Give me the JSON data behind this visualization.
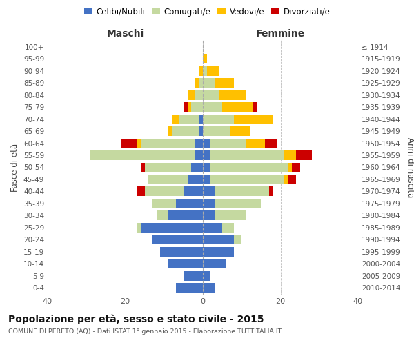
{
  "age_groups": [
    "0-4",
    "5-9",
    "10-14",
    "15-19",
    "20-24",
    "25-29",
    "30-34",
    "35-39",
    "40-44",
    "45-49",
    "50-54",
    "55-59",
    "60-64",
    "65-69",
    "70-74",
    "75-79",
    "80-84",
    "85-89",
    "90-94",
    "95-99",
    "100+"
  ],
  "birth_years": [
    "2010-2014",
    "2005-2009",
    "2000-2004",
    "1995-1999",
    "1990-1994",
    "1985-1989",
    "1980-1984",
    "1975-1979",
    "1970-1974",
    "1965-1969",
    "1960-1964",
    "1955-1959",
    "1950-1954",
    "1945-1949",
    "1940-1944",
    "1935-1939",
    "1930-1934",
    "1925-1929",
    "1920-1924",
    "1915-1919",
    "≤ 1914"
  ],
  "males": {
    "celibi": [
      7,
      5,
      9,
      11,
      13,
      16,
      9,
      7,
      5,
      4,
      3,
      2,
      2,
      1,
      1,
      0,
      0,
      0,
      0,
      0,
      0
    ],
    "coniugati": [
      0,
      0,
      0,
      0,
      0,
      1,
      3,
      6,
      10,
      10,
      12,
      27,
      14,
      7,
      5,
      3,
      2,
      1,
      0,
      0,
      0
    ],
    "vedovi": [
      0,
      0,
      0,
      0,
      0,
      0,
      0,
      0,
      0,
      0,
      0,
      0,
      1,
      1,
      2,
      1,
      2,
      1,
      1,
      0,
      0
    ],
    "divorziati": [
      0,
      0,
      0,
      0,
      0,
      0,
      0,
      0,
      2,
      0,
      1,
      0,
      4,
      0,
      0,
      1,
      0,
      0,
      0,
      0,
      0
    ]
  },
  "females": {
    "nubili": [
      3,
      2,
      6,
      8,
      8,
      5,
      3,
      3,
      3,
      2,
      2,
      2,
      2,
      0,
      0,
      0,
      0,
      0,
      0,
      0,
      0
    ],
    "coniugate": [
      0,
      0,
      0,
      0,
      2,
      3,
      8,
      12,
      14,
      19,
      20,
      19,
      9,
      7,
      8,
      5,
      4,
      3,
      1,
      0,
      0
    ],
    "vedove": [
      0,
      0,
      0,
      0,
      0,
      0,
      0,
      0,
      0,
      1,
      1,
      3,
      5,
      5,
      10,
      8,
      7,
      5,
      3,
      1,
      0
    ],
    "divorziate": [
      0,
      0,
      0,
      0,
      0,
      0,
      0,
      0,
      1,
      2,
      2,
      4,
      3,
      0,
      0,
      1,
      0,
      0,
      0,
      0,
      0
    ]
  },
  "colors": {
    "celibi": "#4472c4",
    "coniugati": "#c5d9a0",
    "vedovi": "#ffc000",
    "divorziati": "#cc0000"
  },
  "xlim": 40,
  "title": "Popolazione per età, sesso e stato civile - 2015",
  "subtitle": "COMUNE DI PERETO (AQ) - Dati ISTAT 1° gennaio 2015 - Elaborazione TUTTITALIA.IT",
  "ylabel_left": "Fasce di età",
  "ylabel_right": "Anni di nascita",
  "xlabel_left": "Maschi",
  "xlabel_right": "Femmine",
  "legend_labels": [
    "Celibi/Nubili",
    "Coniugati/e",
    "Vedovi/e",
    "Divorziati/e"
  ],
  "background_color": "#ffffff",
  "grid_color": "#bbbbbb"
}
